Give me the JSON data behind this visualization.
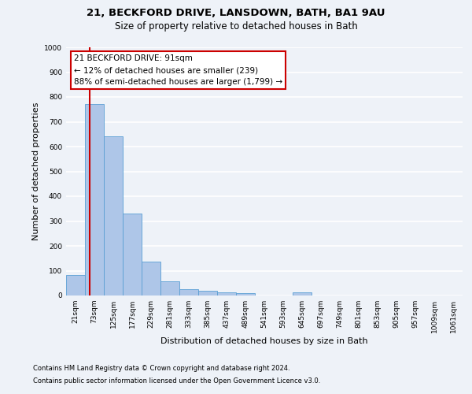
{
  "title1": "21, BECKFORD DRIVE, LANSDOWN, BATH, BA1 9AU",
  "title2": "Size of property relative to detached houses in Bath",
  "xlabel": "Distribution of detached houses by size in Bath",
  "ylabel": "Number of detached properties",
  "categories": [
    "21sqm",
    "73sqm",
    "125sqm",
    "177sqm",
    "229sqm",
    "281sqm",
    "333sqm",
    "385sqm",
    "437sqm",
    "489sqm",
    "541sqm",
    "593sqm",
    "645sqm",
    "697sqm",
    "749sqm",
    "801sqm",
    "853sqm",
    "905sqm",
    "957sqm",
    "1009sqm",
    "1061sqm"
  ],
  "values": [
    82,
    770,
    640,
    330,
    135,
    58,
    24,
    20,
    13,
    10,
    0,
    0,
    12,
    0,
    0,
    0,
    0,
    0,
    0,
    0,
    0
  ],
  "bar_color": "#aec6e8",
  "bar_edgecolor": "#5a9fd4",
  "vline_x": 0.73,
  "vline_color": "#cc0000",
  "annotation_text": "21 BECKFORD DRIVE: 91sqm\n← 12% of detached houses are smaller (239)\n88% of semi-detached houses are larger (1,799) →",
  "annotation_box_facecolor": "white",
  "annotation_box_edgecolor": "#cc0000",
  "ylim": [
    0,
    1000
  ],
  "yticks": [
    0,
    100,
    200,
    300,
    400,
    500,
    600,
    700,
    800,
    900,
    1000
  ],
  "footnote1": "Contains HM Land Registry data © Crown copyright and database right 2024.",
  "footnote2": "Contains public sector information licensed under the Open Government Licence v3.0.",
  "background_color": "#eef2f8",
  "plot_background": "#eef2f8",
  "grid_color": "white",
  "title1_fontsize": 9.5,
  "title2_fontsize": 8.5,
  "axis_label_fontsize": 8,
  "tick_fontsize": 6.5,
  "annotation_fontsize": 7.5,
  "footnote_fontsize": 6
}
